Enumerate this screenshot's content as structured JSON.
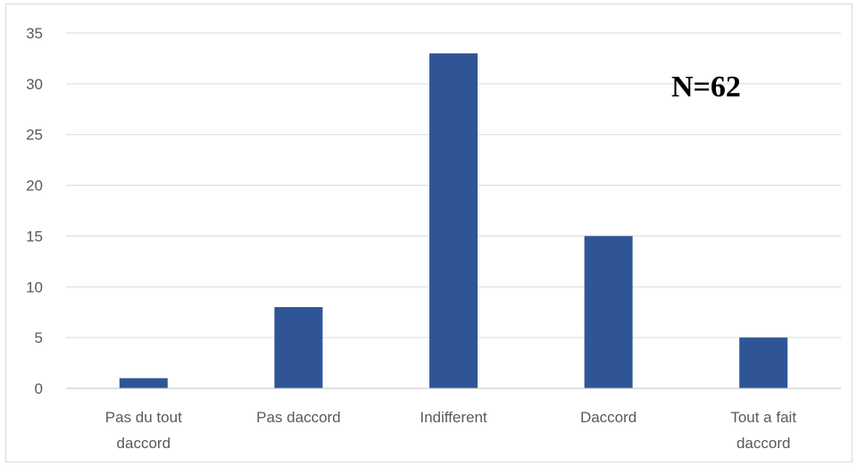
{
  "chart_data": {
    "type": "bar",
    "categories": [
      [
        "Pas du tout",
        "daccord"
      ],
      [
        "Pas daccord"
      ],
      [
        "Indifferent"
      ],
      [
        "Daccord"
      ],
      [
        "Tout a fait",
        "daccord"
      ]
    ],
    "values": [
      1,
      8,
      33,
      15,
      5
    ],
    "title": "",
    "xlabel": "",
    "ylabel": "",
    "ylim": [
      0,
      35
    ],
    "yticks": [
      0,
      5,
      10,
      15,
      20,
      25,
      30,
      35
    ],
    "grid": true,
    "legend": "none",
    "annotation": "N=62",
    "colors": {
      "bar": "#2f5597",
      "grid": "#d9d9d9",
      "axis": "#bfbfbf",
      "tick_text": "#595959",
      "frame": "#d9d9d9"
    }
  }
}
